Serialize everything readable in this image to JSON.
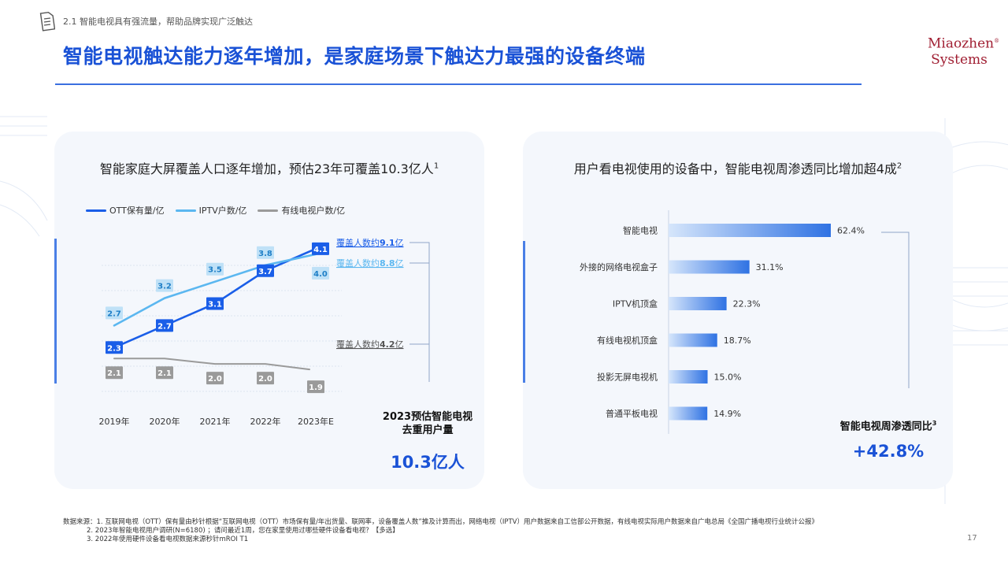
{
  "header": {
    "section_label": "2.1 智能电视具有强流量，帮助品牌实现广泛触达",
    "title": "智能电视触达能力逐年增加，是家庭场景下触达力最强的设备终端",
    "logo_line1": "Miaozhen",
    "logo_line2": "Systems",
    "logo_mark": "®"
  },
  "colors": {
    "ott": "#1a5ee8",
    "iptv": "#5bb7f0",
    "cable": "#9a9a9a",
    "accent": "#1a52d6",
    "bar_start": "#d6e6fb",
    "bar_end": "#2f72e3"
  },
  "left_panel": {
    "title": "智能家庭大屏覆盖人口逐年增加，预估23年可覆盖10.3亿人",
    "title_sup": "1",
    "kpi_label_line1": "2023预估智能电视",
    "kpi_label_line2": "去重用户量",
    "kpi_value": "10.3亿人"
  },
  "right_panel": {
    "title": "用户看电视使用的设备中，智能电视周渗透同比增加超4成",
    "title_sup": "2",
    "kpi_label": "智能电视周渗透同比",
    "kpi_sup": "3",
    "kpi_value": "+42.8%"
  },
  "chart_data": [
    {
      "type": "line",
      "categories": [
        "2019年",
        "2020年",
        "2021年",
        "2022年",
        "2023年E"
      ],
      "series": [
        {
          "name": "OTT保有量/亿",
          "values": [
            2.3,
            2.7,
            3.1,
            3.7,
            4.1
          ],
          "labels": [
            "2.3",
            "2.7",
            "3.1",
            "3.7",
            "4.1"
          ]
        },
        {
          "name": "IPTV户数/亿",
          "values": [
            2.7,
            3.2,
            3.5,
            3.8,
            4.0
          ],
          "labels": [
            "2.7",
            "3.2",
            "3.5",
            "3.8",
            "4.0"
          ]
        },
        {
          "name": "有线电视户数/亿",
          "values": [
            2.1,
            2.1,
            2.0,
            2.0,
            1.9
          ],
          "labels": [
            "2.1",
            "2.1",
            "2.0",
            "2.0",
            "1.9"
          ]
        }
      ],
      "annotations": {
        "ott_prefix": "覆盖人数约",
        "ott_value": "9.1",
        "ott_unit": "亿",
        "iptv_prefix": "覆盖人数约",
        "iptv_value": "8.8",
        "iptv_unit": "亿",
        "cable_prefix": "覆盖人数约",
        "cable_value": "4.2",
        "cable_unit": "亿"
      },
      "ylim": [
        1.5,
        4.4
      ],
      "grid": true
    },
    {
      "type": "bar",
      "orientation": "horizontal",
      "categories": [
        "智能电视",
        "外接的网络电视盒子",
        "IPTV机顶盒",
        "有线电视机顶盒",
        "投影无屏电视机",
        "普通平板电视"
      ],
      "values": [
        62.4,
        31.1,
        22.3,
        18.7,
        15.0,
        14.9
      ],
      "labels": [
        "62.4%",
        "31.1%",
        "22.3%",
        "18.7%",
        "15.0%",
        "14.9%"
      ],
      "xlim": [
        0,
        70
      ]
    }
  ],
  "footer": {
    "line1": "数据来源：1. 互联网电视（OTT）保有量由秒针根据“互联网电视（OTT）市场保有量/年出货量、联网率，设备覆盖人数”推及计算而出，网络电视（IPTV）用户数据来自工信部公开数据，有线电视实际用户数据来自广电总局《全国广播电视行业统计公报》",
    "line2": "2. 2023年智能电视用户调研(N=6180) ；请问最近1周，您在家里使用过哪些硬件设备看电视？【多选】",
    "line3": "3. 2022年使用硬件设备看电视数据来源秒针mROI T1"
  },
  "page_number": "17"
}
